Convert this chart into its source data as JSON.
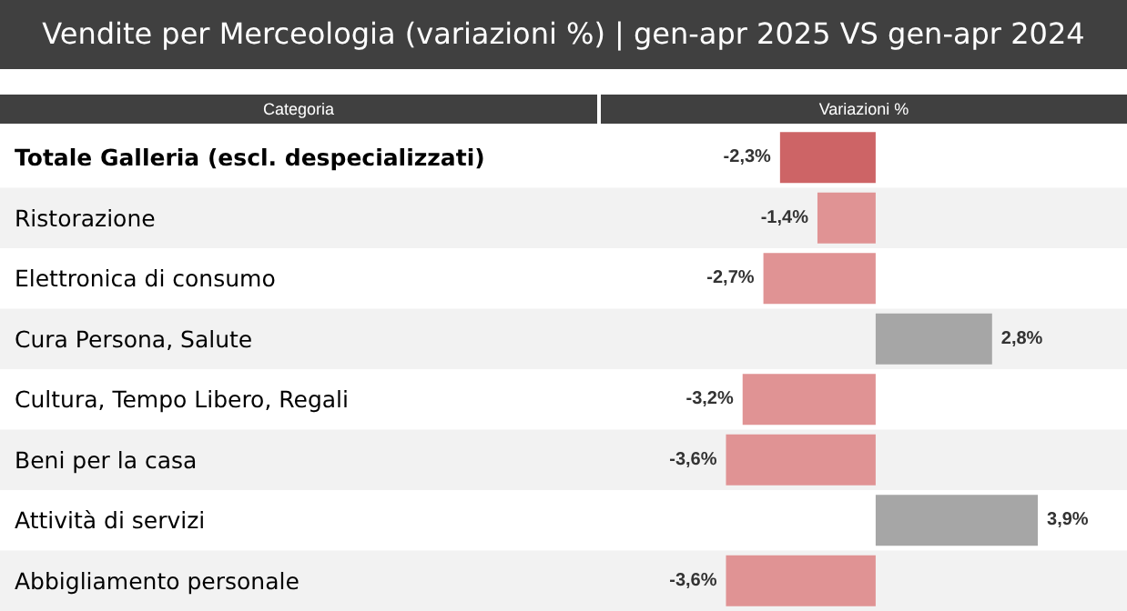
{
  "chart_data": {
    "type": "bar",
    "orientation": "horizontal",
    "title": "Vendite per Merceologia (variazioni %) | gen-apr 2025 VS gen-apr 2024",
    "ylabel": "Categoria",
    "xlabel": "Variazioni %",
    "categories": [
      "Totale Galleria (escl. despecializzati)",
      "Ristorazione",
      "Elettronica di consumo",
      "Cura Persona, Salute",
      "Cultura, Tempo Libero, Regali",
      "Beni per la casa",
      "Attività di servizi",
      "Abbigliamento personale"
    ],
    "values": [
      -2.3,
      -1.4,
      -2.7,
      2.8,
      -3.2,
      -3.6,
      3.9,
      -3.6
    ],
    "colors": [
      "#cd6466",
      "#e09394",
      "#e09394",
      "#a6a6a6",
      "#e09394",
      "#e09394",
      "#a6a6a6",
      "#e09394"
    ],
    "value_labels": [
      "-2,3%",
      "-1,4%",
      "-2,7%",
      "2,8%",
      "-3,2%",
      "-3,6%",
      "3,9%",
      "-3,6%"
    ]
  }
}
